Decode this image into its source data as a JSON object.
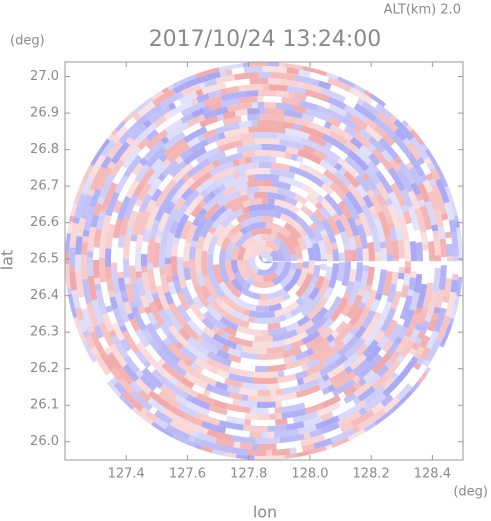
{
  "chart_data": {
    "type": "radar-ppi",
    "title": "2017/10/24 13:24:00",
    "subtitle": "ALT(km) 2.0",
    "x_label": "lon",
    "x_unit": "(deg)",
    "y_label": "lat",
    "y_unit": "(deg)",
    "xlim": [
      127.2,
      128.5
    ],
    "ylim": [
      25.95,
      27.04
    ],
    "xticks": [
      127.4,
      127.6,
      127.8,
      {
        "value": 128.0,
        "label": "128.0"
      },
      128.2,
      128.4
    ],
    "yticks": [
      {
        "value": 26.0,
        "label": "26.0"
      },
      26.1,
      26.2,
      26.3,
      26.4,
      26.5,
      26.6,
      26.7,
      26.8,
      26.9,
      {
        "value": 27.0,
        "label": "27.0"
      }
    ]
  }
}
